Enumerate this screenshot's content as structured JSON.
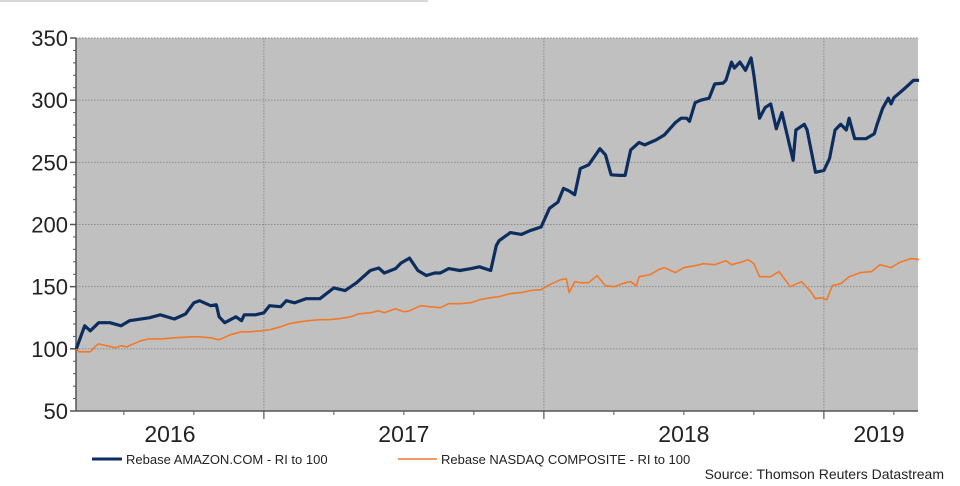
{
  "chart_data": {
    "type": "line",
    "title": "",
    "xlabel": "",
    "ylabel": "",
    "xlim": [
      2016.33,
      2019.34
    ],
    "ylim": [
      50,
      350
    ],
    "yticks": [
      "50",
      "100",
      "150",
      "200",
      "250",
      "300",
      "350"
    ],
    "xtick_labels": [
      "2016",
      "2017",
      "2018",
      "2019"
    ],
    "grid": true,
    "plot_background": "#c0c0c0",
    "legend_position": "bottom",
    "source": "Source: Thomson Reuters Datastream",
    "series": [
      {
        "name": "Rebase AMAZON.COM - RI to 100",
        "color": "#0d2d5e",
        "x": [
          2016.33,
          2016.36,
          2016.38,
          2016.41,
          2016.45,
          2016.49,
          2016.52,
          2016.59,
          2016.63,
          2016.68,
          2016.72,
          2016.75,
          2016.77,
          2016.81,
          2016.83,
          2016.84,
          2016.86,
          2016.9,
          2016.92,
          2016.93,
          2016.97,
          2017.0,
          2017.02,
          2017.06,
          2017.08,
          2017.11,
          2017.15,
          2017.2,
          2017.25,
          2017.29,
          2017.33,
          2017.38,
          2017.41,
          2017.43,
          2017.47,
          2017.49,
          2017.52,
          2017.55,
          2017.58,
          2017.61,
          2017.63,
          2017.66,
          2017.7,
          2017.74,
          2017.77,
          2017.81,
          2017.83,
          2017.84,
          2017.88,
          2017.92,
          2017.95,
          2017.99,
          2018.02,
          2018.05,
          2018.07,
          2018.09,
          2018.11,
          2018.13,
          2018.15,
          2018.16,
          2018.2,
          2018.22,
          2018.24,
          2018.27,
          2018.29,
          2018.31,
          2018.34,
          2018.36,
          2018.4,
          2018.43,
          2018.47,
          2018.49,
          2018.51,
          2018.52,
          2018.54,
          2018.56,
          2018.59,
          2018.61,
          2018.64,
          2018.65,
          2018.67,
          2018.68,
          2018.7,
          2018.72,
          2018.74,
          2018.75,
          2018.77,
          2018.79,
          2018.81,
          2018.83,
          2018.85,
          2018.89,
          2018.9,
          2018.93,
          2018.94,
          2018.97,
          2019.0,
          2019.02,
          2019.04,
          2019.06,
          2019.08,
          2019.09,
          2019.11,
          2019.15,
          2019.18,
          2019.19,
          2019.21,
          2019.23,
          2019.24,
          2019.25,
          2019.29,
          2019.32,
          2019.34
        ],
        "values": [
          100,
          118.5,
          114.5,
          121,
          121,
          118.5,
          122.6,
          125,
          127.4,
          124,
          128,
          137,
          138.7,
          134.7,
          135.5,
          125.8,
          121,
          125.8,
          122.6,
          127.4,
          127.4,
          129,
          134.7,
          133.9,
          138.7,
          137,
          140.3,
          140.3,
          149,
          146.8,
          153,
          163,
          165,
          161,
          164.5,
          169,
          173,
          163,
          159,
          161,
          161,
          164.5,
          163,
          164.5,
          166,
          163,
          183,
          187,
          193.5,
          192,
          195,
          198,
          213,
          218,
          229,
          227,
          224,
          245,
          247,
          248,
          261,
          256,
          240,
          239.5,
          239.5,
          260,
          266,
          264,
          268,
          272,
          282,
          285.5,
          285.5,
          283,
          298,
          300,
          301.6,
          313,
          313.7,
          316,
          330.6,
          325.8,
          330.6,
          324,
          334,
          320,
          285.5,
          294,
          297,
          277,
          290,
          251.6,
          276,
          280.6,
          276,
          242,
          243.5,
          253,
          276,
          280.6,
          276,
          285.5,
          269,
          269,
          273,
          280.6,
          293.5,
          301.6,
          297,
          302,
          309.7,
          316,
          316
        ]
      },
      {
        "name": "Rebase NASDAQ COMPOSITE - RI to 100",
        "color": "#f07a2a",
        "x": [
          2016.33,
          2016.34,
          2016.38,
          2016.4,
          2016.41,
          2016.44,
          2016.47,
          2016.49,
          2016.51,
          2016.56,
          2016.59,
          2016.63,
          2016.68,
          2016.74,
          2016.77,
          2016.81,
          2016.84,
          2016.88,
          2016.92,
          2016.95,
          2016.99,
          2017.02,
          2017.06,
          2017.09,
          2017.13,
          2017.16,
          2017.2,
          2017.23,
          2017.27,
          2017.31,
          2017.34,
          2017.38,
          2017.41,
          2017.43,
          2017.47,
          2017.5,
          2017.52,
          2017.56,
          2017.59,
          2017.63,
          2017.66,
          2017.7,
          2017.74,
          2017.77,
          2017.81,
          2017.84,
          2017.88,
          2017.92,
          2017.95,
          2017.99,
          2018.02,
          2018.06,
          2018.08,
          2018.09,
          2018.11,
          2018.13,
          2018.16,
          2018.19,
          2018.22,
          2018.25,
          2018.29,
          2018.31,
          2018.33,
          2018.34,
          2018.38,
          2018.41,
          2018.43,
          2018.47,
          2018.5,
          2018.54,
          2018.57,
          2018.61,
          2018.65,
          2018.67,
          2018.7,
          2018.73,
          2018.75,
          2018.77,
          2018.81,
          2018.84,
          2018.88,
          2018.92,
          2018.95,
          2018.97,
          2018.99,
          2019.01,
          2019.03,
          2019.06,
          2019.09,
          2019.13,
          2019.17,
          2019.2,
          2019.24,
          2019.27,
          2019.31,
          2019.34
        ],
        "values": [
          100,
          97.6,
          97.6,
          102.4,
          104,
          102.4,
          100.8,
          102.4,
          101.6,
          106.5,
          108,
          108,
          108.9,
          109.7,
          109.7,
          108.9,
          107.3,
          111.3,
          113.7,
          113.7,
          114.5,
          115.3,
          117.7,
          120.2,
          121.8,
          122.6,
          123.4,
          123.4,
          124.2,
          125.8,
          128.2,
          129,
          130.6,
          129,
          132.3,
          129.8,
          130.6,
          134.7,
          133.9,
          133.1,
          136.3,
          136.3,
          137.1,
          139.5,
          141.1,
          141.9,
          144.4,
          145.2,
          146.8,
          147.6,
          151.6,
          155.6,
          156.5,
          145.2,
          154,
          153.2,
          153.2,
          158.9,
          150.8,
          150,
          153.2,
          154,
          150.8,
          158,
          159.7,
          163.7,
          165.3,
          161.3,
          165.3,
          166.9,
          168.5,
          167.7,
          171,
          167.7,
          169.4,
          171.8,
          168.5,
          158,
          158,
          162.1,
          150,
          154,
          146.8,
          140.3,
          141.1,
          139.5,
          150.8,
          152.4,
          158,
          161.3,
          162.1,
          167.7,
          165.3,
          169.4,
          172.6,
          171.8
        ]
      }
    ]
  }
}
